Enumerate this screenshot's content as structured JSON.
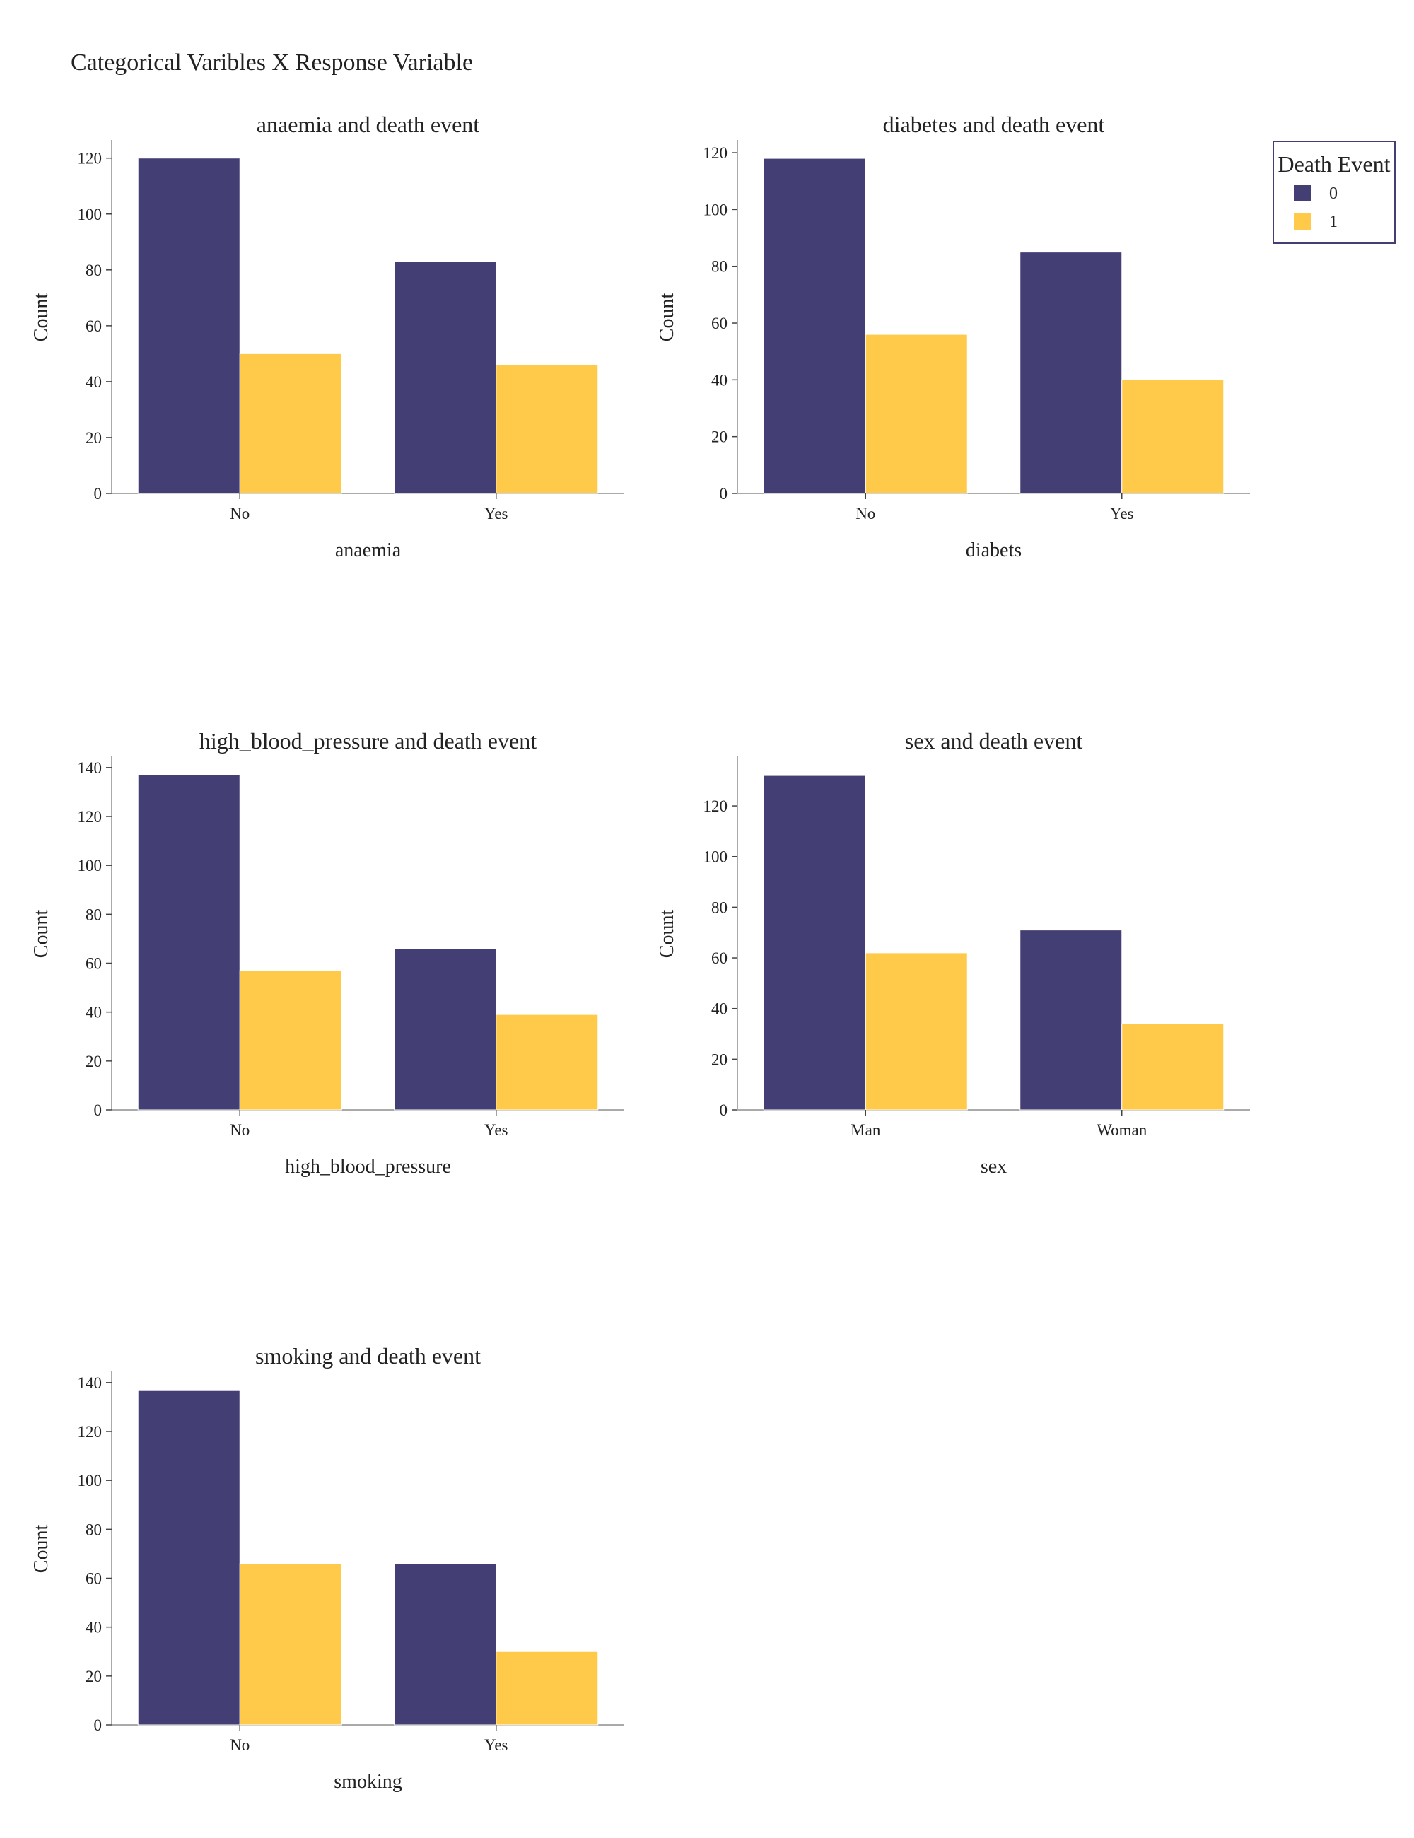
{
  "figure": {
    "title": "Categorical Varibles X Response Variable"
  },
  "legend": {
    "title": "Death Event",
    "entries": [
      {
        "label": "0",
        "color": "#433e73"
      },
      {
        "label": "1",
        "color": "#ffc94a"
      }
    ]
  },
  "chart_data": [
    {
      "type": "bar",
      "title": "anaemia and death event",
      "xlabel": "anaemia",
      "ylabel": "Count",
      "categories": [
        "No",
        "Yes"
      ],
      "yticks": [
        0,
        20,
        40,
        60,
        80,
        100,
        120
      ],
      "ylim": [
        0,
        126
      ],
      "series": [
        {
          "name": "0",
          "values": [
            120,
            83
          ]
        },
        {
          "name": "1",
          "values": [
            50,
            46
          ]
        }
      ]
    },
    {
      "type": "bar",
      "title": "diabetes and death event",
      "xlabel": "diabets",
      "ylabel": "Count",
      "categories": [
        "No",
        "Yes"
      ],
      "yticks": [
        0,
        20,
        40,
        60,
        80,
        100,
        120
      ],
      "ylim": [
        0,
        124
      ],
      "series": [
        {
          "name": "0",
          "values": [
            118,
            85
          ]
        },
        {
          "name": "1",
          "values": [
            56,
            40
          ]
        }
      ]
    },
    {
      "type": "bar",
      "title": "high_blood_pressure and death event",
      "xlabel": "high_blood_pressure",
      "ylabel": "Count",
      "categories": [
        "No",
        "Yes"
      ],
      "yticks": [
        0,
        20,
        40,
        60,
        80,
        100,
        120,
        140
      ],
      "ylim": [
        0,
        144
      ],
      "series": [
        {
          "name": "0",
          "values": [
            137,
            66
          ]
        },
        {
          "name": "1",
          "values": [
            57,
            39
          ]
        }
      ]
    },
    {
      "type": "bar",
      "title": "sex and death event",
      "xlabel": "sex",
      "ylabel": "Count",
      "categories": [
        "Man",
        "Woman"
      ],
      "yticks": [
        0,
        20,
        40,
        60,
        80,
        100,
        120
      ],
      "ylim": [
        0,
        139
      ],
      "series": [
        {
          "name": "0",
          "values": [
            132,
            71
          ]
        },
        {
          "name": "1",
          "values": [
            62,
            34
          ]
        }
      ]
    },
    {
      "type": "bar",
      "title": "smoking and death event",
      "xlabel": "smoking",
      "ylabel": "Count",
      "categories": [
        "No",
        "Yes"
      ],
      "yticks": [
        0,
        20,
        40,
        60,
        80,
        100,
        120,
        140
      ],
      "ylim": [
        0,
        144
      ],
      "series": [
        {
          "name": "0",
          "values": [
            137,
            66
          ]
        },
        {
          "name": "1",
          "values": [
            66,
            30
          ]
        }
      ]
    }
  ]
}
